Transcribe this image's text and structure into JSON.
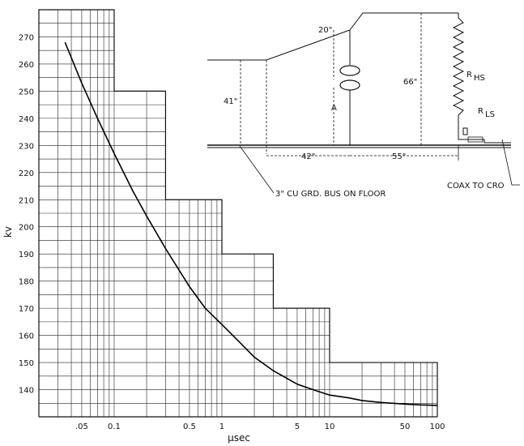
{
  "chart_data": {
    "type": "line",
    "xlabel": "μsec",
    "ylabel": "kv",
    "xscale": "log",
    "xlim": [
      0.02,
      100
    ],
    "ylim": [
      130,
      280
    ],
    "grid": true,
    "x_tick_labels": [
      {
        "value": 0.05,
        "label": ".05"
      },
      {
        "value": 0.1,
        "label": "0.1"
      },
      {
        "value": 0.5,
        "label": "0.5"
      },
      {
        "value": 1,
        "label": "1"
      },
      {
        "value": 5,
        "label": "5"
      },
      {
        "value": 10,
        "label": "10"
      },
      {
        "value": 50,
        "label": "50"
      },
      {
        "value": 100,
        "label": "100"
      }
    ],
    "y_ticks": [
      140,
      150,
      160,
      170,
      180,
      190,
      200,
      210,
      220,
      230,
      240,
      250,
      260,
      270
    ],
    "step_envelope": [
      {
        "x_from": 0.02,
        "x_to": 0.1,
        "y": 280
      },
      {
        "x_from": 0.1,
        "x_to": 0.3,
        "y": 250
      },
      {
        "x_from": 0.3,
        "x_to": 1,
        "y": 210
      },
      {
        "x_from": 1,
        "x_to": 3,
        "y": 190
      },
      {
        "x_from": 3,
        "x_to": 10,
        "y": 170
      },
      {
        "x_from": 10,
        "x_to": 100,
        "y": 150
      }
    ],
    "series": [
      {
        "x": [
          0.035,
          0.05,
          0.07,
          0.1,
          0.15,
          0.2,
          0.3,
          0.5,
          0.7,
          1,
          1.5,
          2,
          3,
          5,
          7,
          10,
          15,
          20,
          30,
          50,
          70,
          100
        ],
        "y": [
          268,
          253,
          240,
          227,
          213,
          204,
          192,
          178,
          170,
          164,
          157,
          152,
          147,
          142,
          140,
          138,
          137,
          136,
          135.3,
          134.7,
          134.4,
          134.2
        ]
      }
    ]
  },
  "diagram": {
    "dim_20": "20\"",
    "dim_41": "41\"",
    "dim_66": "66\"",
    "dim_42": "42\"",
    "dim_55": "55\"",
    "label_a": "A",
    "label_rhs_main": "R",
    "label_rhs_sub": "HS",
    "label_rls_main": "R",
    "label_rls_sub": "LS",
    "label_bus": "3\" CU GRD. BUS ON FLOOR",
    "label_coax": "COAX TO CRO"
  }
}
